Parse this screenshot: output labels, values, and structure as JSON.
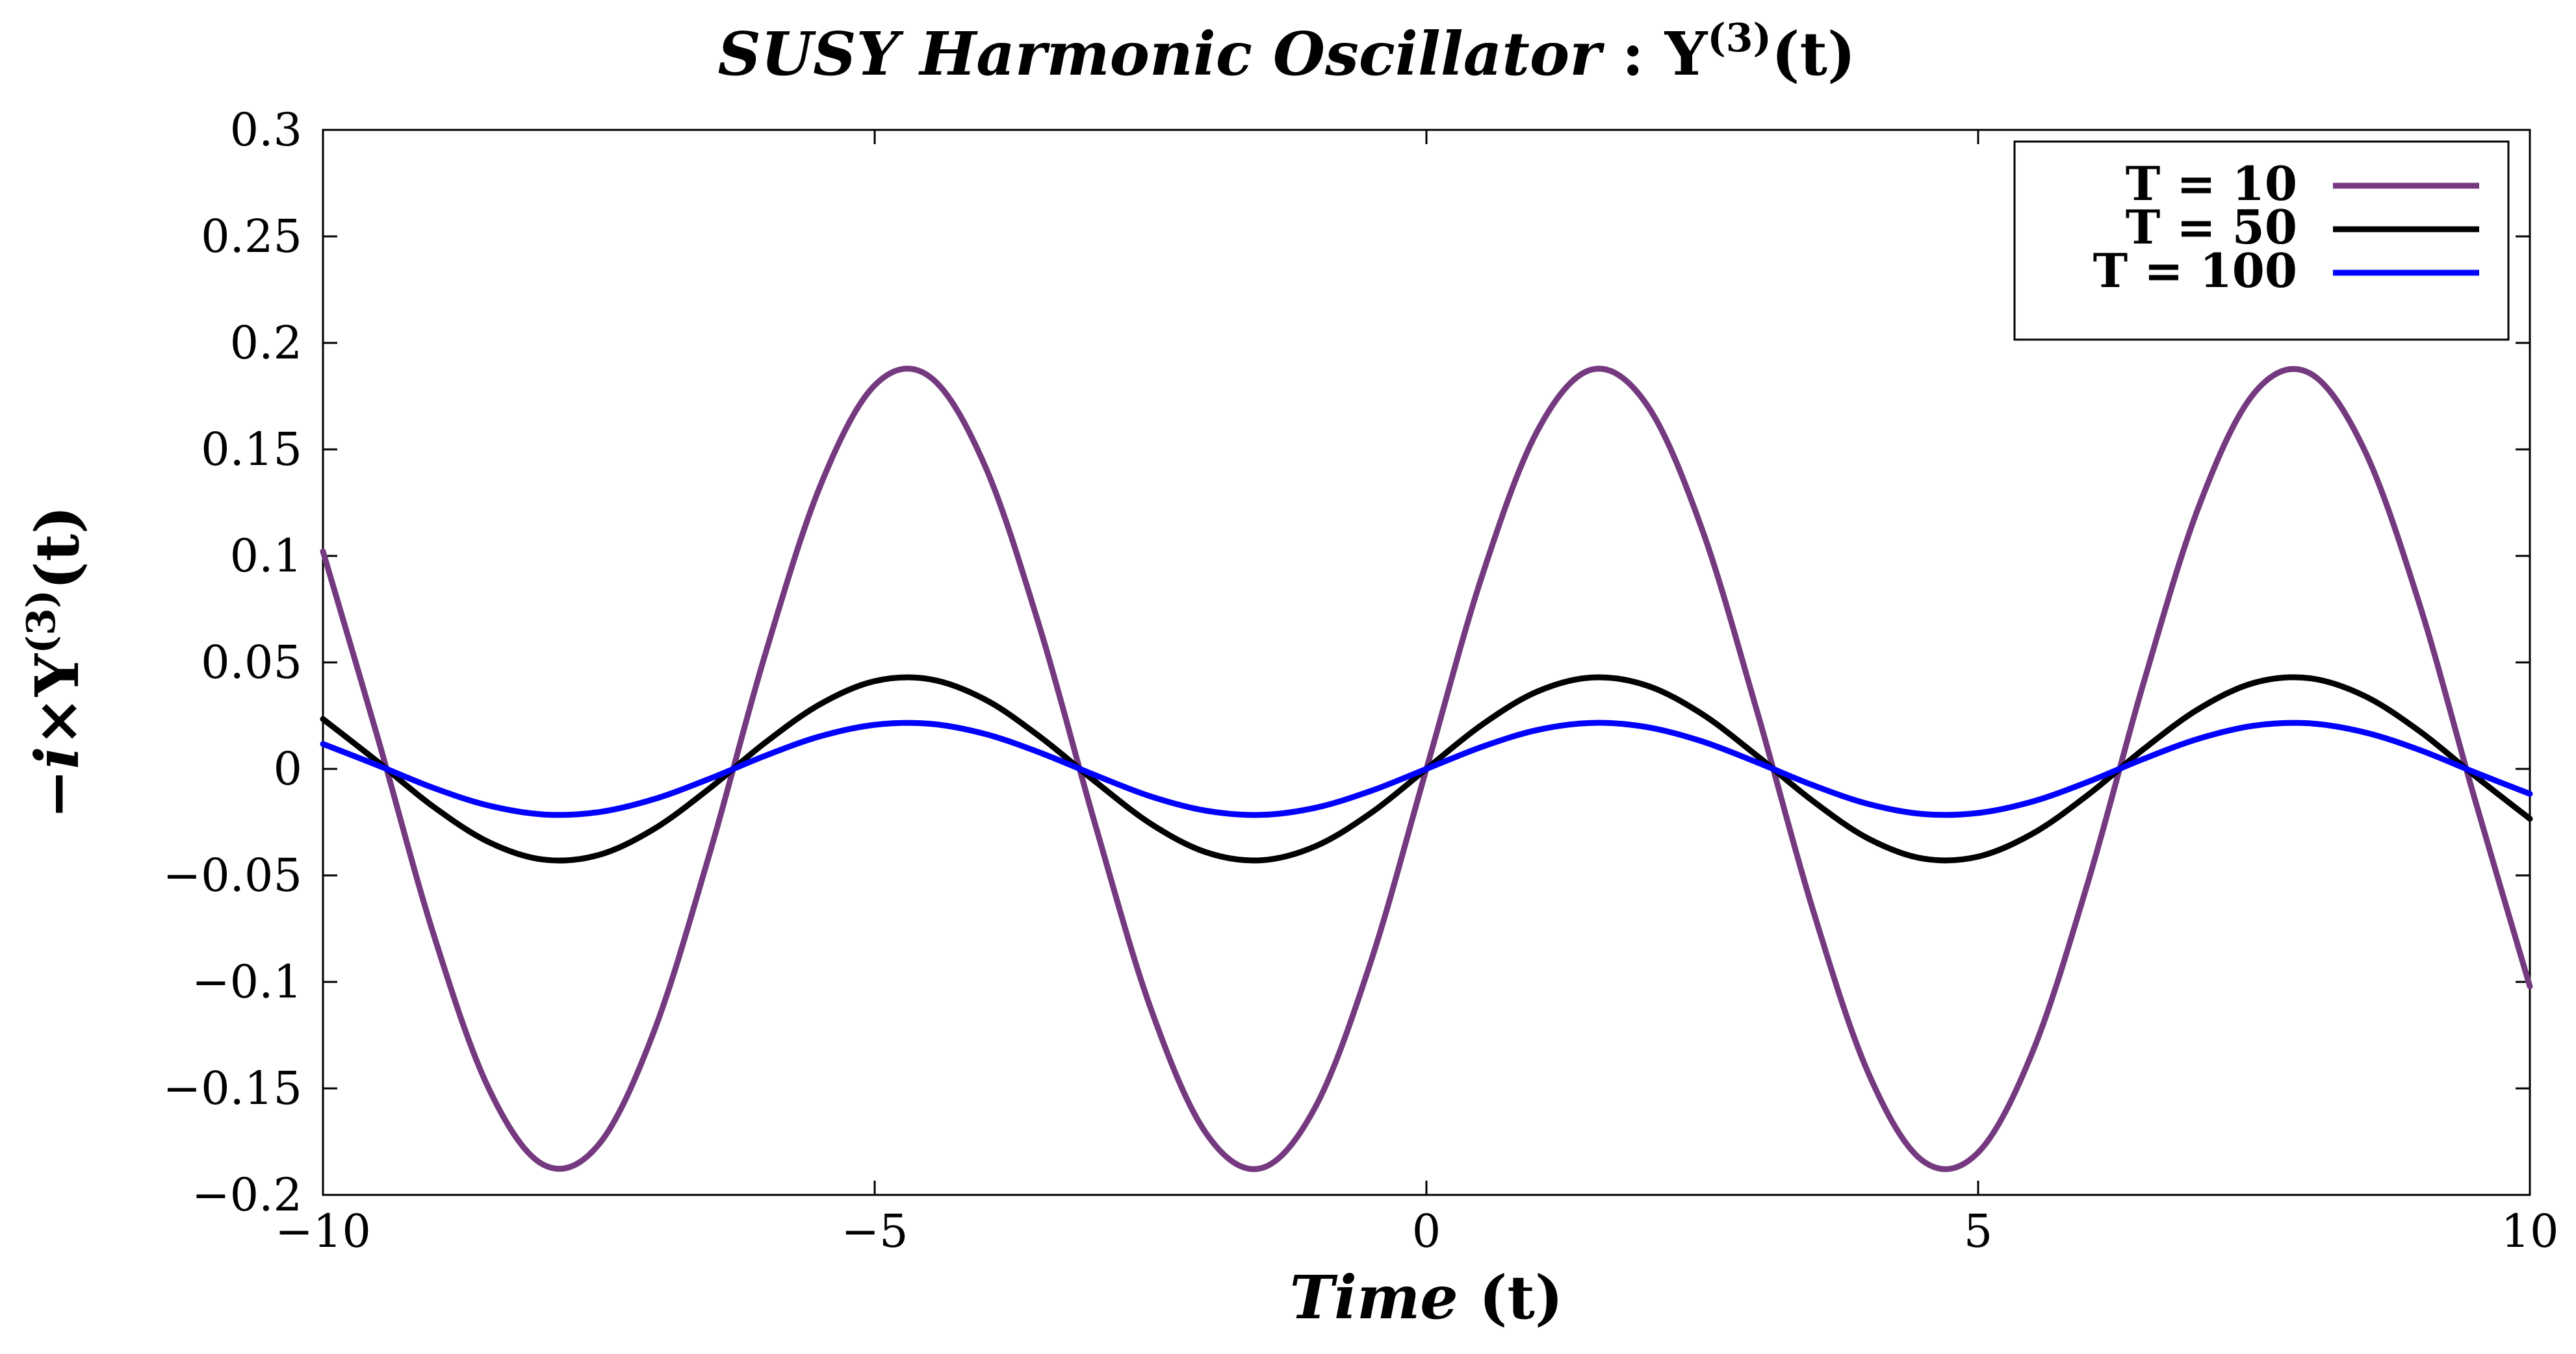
{
  "chart_data": {
    "type": "line",
    "title": {
      "italic_part": "SUSY Harmonic Oscillator",
      "separator": " : ",
      "symbol": "Y",
      "superscript": "(3)",
      "suffix": "(t)"
    },
    "xlabel": {
      "italic_part": "Time",
      "rest": " (t)"
    },
    "ylabel": {
      "prefix": "−",
      "i": "i",
      "times": "×",
      "symbol": "Y",
      "superscript": "(3)",
      "suffix": "(t)"
    },
    "xlim": [
      -10,
      10
    ],
    "ylim": [
      -0.2,
      0.3
    ],
    "xticks": [
      -10,
      -5,
      0,
      5,
      10
    ],
    "xtick_labels": [
      "−10",
      "−5",
      "0",
      "5",
      "10"
    ],
    "yticks": [
      -0.2,
      -0.15,
      -0.1,
      -0.05,
      0,
      0.05,
      0.1,
      0.15,
      0.2,
      0.25,
      0.3
    ],
    "ytick_labels": [
      "−0.2",
      "−0.15",
      "−0.1",
      "−0.05",
      "0",
      "0.05",
      "0.1",
      "0.15",
      "0.2",
      "0.25",
      "0.3"
    ],
    "grid": false,
    "legend_position": "top-right",
    "x_samples": [
      -10,
      -9.5,
      -9,
      -8.5,
      -8,
      -7.5,
      -7,
      -6.5,
      -6,
      -5.5,
      -5,
      -4.5,
      -4,
      -3.5,
      -3,
      -2.5,
      -2,
      -1.5,
      -1,
      -0.5,
      0,
      0.5,
      1,
      1.5,
      2,
      2.5,
      3,
      3.5,
      4,
      4.5,
      5,
      5.5,
      6,
      6.5,
      7,
      7.5,
      8,
      8.5,
      9,
      9.5,
      10
    ],
    "series": [
      {
        "name": "T = 10",
        "color": "#74397F",
        "values": [
          0.1021,
          0.014,
          -0.0773,
          -0.1498,
          -0.1859,
          -0.1763,
          -0.1232,
          -0.0405,
          0.0524,
          0.132,
          0.1801,
          0.1841,
          0.1422,
          0.0657,
          -0.0264,
          -0.1122,
          -0.1708,
          -0.1875,
          -0.1581,
          -0.0899,
          0.0,
          0.0899,
          0.1581,
          0.1875,
          0.1708,
          0.1122,
          0.0264,
          -0.0657,
          -0.1422,
          -0.1841,
          -0.1801,
          -0.132,
          -0.0524,
          0.0405,
          0.1232,
          0.1763,
          0.1859,
          0.1498,
          0.0773,
          -0.014,
          -0.1021
        ]
      },
      {
        "name": "T = 50",
        "color": "#000000",
        "values": [
          0.0234,
          0.0032,
          -0.0177,
          -0.0343,
          -0.0426,
          -0.0404,
          -0.0282,
          -0.0093,
          0.012,
          0.0302,
          0.0412,
          0.0421,
          0.0326,
          0.015,
          -0.006,
          -0.0257,
          -0.0391,
          -0.0429,
          -0.0362,
          -0.0206,
          0.0,
          0.0206,
          0.0362,
          0.0429,
          0.0391,
          0.0257,
          0.006,
          -0.015,
          -0.0326,
          -0.0421,
          -0.0412,
          -0.0302,
          -0.012,
          0.0093,
          0.0282,
          0.0404,
          0.0426,
          0.0343,
          0.0177,
          -0.0032,
          -0.0234
        ]
      },
      {
        "name": "T = 100",
        "color": "#0000FF",
        "values": [
          0.0117,
          0.0016,
          -0.0089,
          -0.0172,
          -0.0214,
          -0.0203,
          -0.0142,
          -0.0047,
          0.006,
          0.0152,
          0.0207,
          0.0212,
          0.0164,
          0.0076,
          -0.003,
          -0.0129,
          -0.0196,
          -0.0216,
          -0.0182,
          -0.0103,
          0.0,
          0.0103,
          0.0182,
          0.0216,
          0.0196,
          0.0129,
          0.003,
          -0.0076,
          -0.0164,
          -0.0212,
          -0.0207,
          -0.0152,
          -0.006,
          0.0047,
          0.0142,
          0.0203,
          0.0214,
          0.0172,
          0.0089,
          -0.0016,
          -0.0117
        ]
      }
    ]
  }
}
